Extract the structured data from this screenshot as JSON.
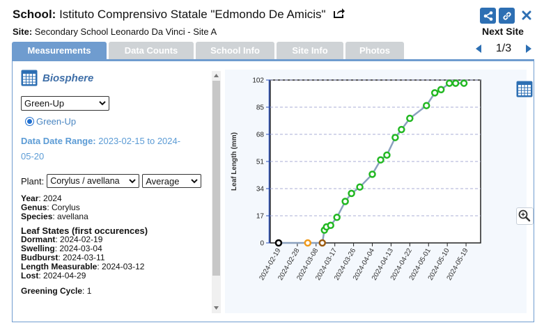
{
  "header": {
    "school_label": "School:",
    "school_name": "Istituto Comprensivo Statale \"Edmondo De Amicis\"",
    "site_label": "Site:",
    "site_name": "Secondary School Leonardo Da Vinci - Site A",
    "next_site_label": "Next Site",
    "pager": "1/3"
  },
  "tabs": [
    {
      "label": "Measurements",
      "active": true
    },
    {
      "label": "Data Counts",
      "active": false
    },
    {
      "label": "School Info",
      "active": false
    },
    {
      "label": "Site Info",
      "active": false
    },
    {
      "label": "Photos",
      "active": false
    }
  ],
  "panel": {
    "dataset_title": "Biosphere",
    "measurement_select": "Green-Up",
    "radio_label": "Green-Up",
    "range_label": "Data Date Range:",
    "range_value_1": "2023-02-15 to 2024-",
    "range_value_2": "05-20",
    "plant_label": "Plant:",
    "plant_select": "Corylus / avellana",
    "stat_select": "Average",
    "year_label": "Year",
    "year": "2024",
    "genus_label": "Genus",
    "genus": "Corylus",
    "species_label": "Species",
    "species": "avellana",
    "leaf_states_title": "Leaf States (first occurences)",
    "dormant_label": "Dormant",
    "dormant": "2024-02-19",
    "swelling_label": "Swelling",
    "swelling": "2024-03-04",
    "budburst_label": "Budburst",
    "budburst": "2024-03-11",
    "length_label": "Length Measurable",
    "length": "2024-03-12",
    "lost_label": "Lost",
    "lost": "2024-04-29",
    "greening_label": "Greening Cycle",
    "greening": "1"
  },
  "colors": {
    "accent": "#2d6fb3",
    "tab_active": "#6f9ccf",
    "tab_inactive": "#cfd3d6",
    "point_green": "#22b822",
    "point_orange": "#f09a1a",
    "point_brown": "#9a5a10",
    "point_black": "#000000",
    "line": "#8aa0be"
  },
  "chart_data": {
    "type": "line",
    "title": "",
    "xlabel": "",
    "ylabel": "Leaf Length (mm)",
    "ylim": [
      0,
      102
    ],
    "yticks": [
      0,
      17,
      34,
      51,
      68,
      85,
      102
    ],
    "xticks": [
      "2024-02-19",
      "2024-02-28",
      "2024-03-08",
      "2024-03-17",
      "2024-03-26",
      "2024-04-04",
      "2024-04-13",
      "2024-04-22",
      "2024-05-01",
      "2024-05-10",
      "2024-05-19"
    ],
    "grid": "horizontal dashed",
    "series": [
      {
        "points": [
          {
            "x": "2024-02-19",
            "y": 0,
            "color": "#000000"
          },
          {
            "x": "2024-03-04",
            "y": 0,
            "color": "#f09a1a"
          },
          {
            "x": "2024-03-11",
            "y": 0,
            "color": "#9a5a10"
          },
          {
            "x": "2024-03-12",
            "y": 8,
            "color": "#22b822"
          },
          {
            "x": "2024-03-13",
            "y": 10,
            "color": "#22b822"
          },
          {
            "x": "2024-03-15",
            "y": 11,
            "color": "#22b822"
          },
          {
            "x": "2024-03-18",
            "y": 16,
            "color": "#22b822"
          },
          {
            "x": "2024-03-22",
            "y": 26,
            "color": "#22b822"
          },
          {
            "x": "2024-03-25",
            "y": 31,
            "color": "#22b822"
          },
          {
            "x": "2024-03-29",
            "y": 35,
            "color": "#22b822"
          },
          {
            "x": "2024-04-04",
            "y": 43,
            "color": "#22b822"
          },
          {
            "x": "2024-04-08",
            "y": 52,
            "color": "#22b822"
          },
          {
            "x": "2024-04-11",
            "y": 55,
            "color": "#22b822"
          },
          {
            "x": "2024-04-15",
            "y": 66,
            "color": "#22b822"
          },
          {
            "x": "2024-04-18",
            "y": 71,
            "color": "#22b822"
          },
          {
            "x": "2024-04-22",
            "y": 78,
            "color": "#22b822"
          },
          {
            "x": "2024-04-30",
            "y": 86,
            "color": "#22b822"
          },
          {
            "x": "2024-05-04",
            "y": 94,
            "color": "#22b822"
          },
          {
            "x": "2024-05-07",
            "y": 96,
            "color": "#22b822"
          },
          {
            "x": "2024-05-11",
            "y": 100,
            "color": "#22b822"
          },
          {
            "x": "2024-05-14",
            "y": 100,
            "color": "#22b822"
          },
          {
            "x": "2024-05-18",
            "y": 100,
            "color": "#22b822"
          }
        ]
      }
    ]
  }
}
